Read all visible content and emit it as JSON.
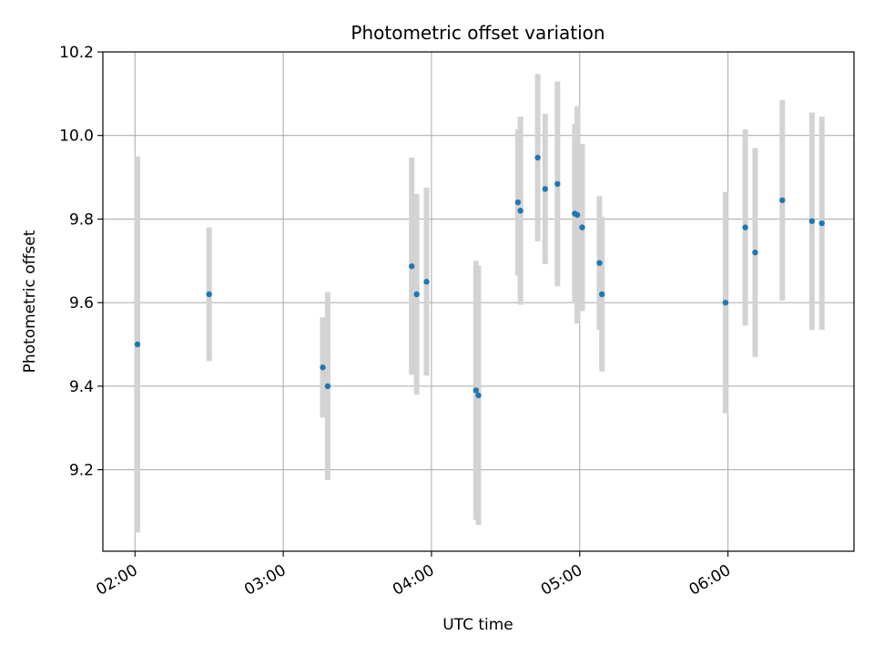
{
  "chart_data": {
    "type": "scatter",
    "title": "Photometric offset variation",
    "xlabel": "UTC time",
    "ylabel": "Photometric offset",
    "x_ticks": [
      "02:00",
      "03:00",
      "04:00",
      "05:00",
      "06:00"
    ],
    "y_ticks": [
      "9.2",
      "9.4",
      "9.6",
      "9.8",
      "10.0",
      "10.2"
    ],
    "xlim": [
      "01:47",
      "06:51"
    ],
    "ylim": [
      9.005,
      10.2
    ],
    "grid": true,
    "colors": {
      "point": "#1f77b4",
      "errorbar": "#d3d3d3",
      "grid": "#b0b0b0"
    },
    "points": [
      {
        "x": "02:01",
        "y": 9.5,
        "err": 0.45
      },
      {
        "x": "02:30",
        "y": 9.62,
        "err": 0.16
      },
      {
        "x": "03:16",
        "y": 9.445,
        "err": 0.12
      },
      {
        "x": "03:18",
        "y": 9.4,
        "err": 0.225
      },
      {
        "x": "03:52",
        "y": 9.687,
        "err": 0.26
      },
      {
        "x": "03:54",
        "y": 9.62,
        "err": 0.24
      },
      {
        "x": "03:58",
        "y": 9.65,
        "err": 0.225
      },
      {
        "x": "04:18",
        "y": 9.39,
        "err": 0.31
      },
      {
        "x": "04:19",
        "y": 9.378,
        "err": 0.31
      },
      {
        "x": "04:35",
        "y": 9.84,
        "err": 0.175
      },
      {
        "x": "04:36",
        "y": 9.82,
        "err": 0.225
      },
      {
        "x": "04:43",
        "y": 9.947,
        "err": 0.2
      },
      {
        "x": "04:46",
        "y": 9.872,
        "err": 0.18
      },
      {
        "x": "04:51",
        "y": 9.884,
        "err": 0.245
      },
      {
        "x": "04:58",
        "y": 9.813,
        "err": 0.215
      },
      {
        "x": "04:59",
        "y": 9.81,
        "err": 0.26
      },
      {
        "x": "05:01",
        "y": 9.78,
        "err": 0.2
      },
      {
        "x": "05:08",
        "y": 9.695,
        "err": 0.16
      },
      {
        "x": "05:09",
        "y": 9.62,
        "err": 0.185
      },
      {
        "x": "05:59",
        "y": 9.6,
        "err": 0.265
      },
      {
        "x": "06:07",
        "y": 9.78,
        "err": 0.235
      },
      {
        "x": "06:11",
        "y": 9.72,
        "err": 0.25
      },
      {
        "x": "06:22",
        "y": 9.845,
        "err": 0.24
      },
      {
        "x": "06:34",
        "y": 9.795,
        "err": 0.26
      },
      {
        "x": "06:38",
        "y": 9.79,
        "err": 0.255
      }
    ]
  }
}
